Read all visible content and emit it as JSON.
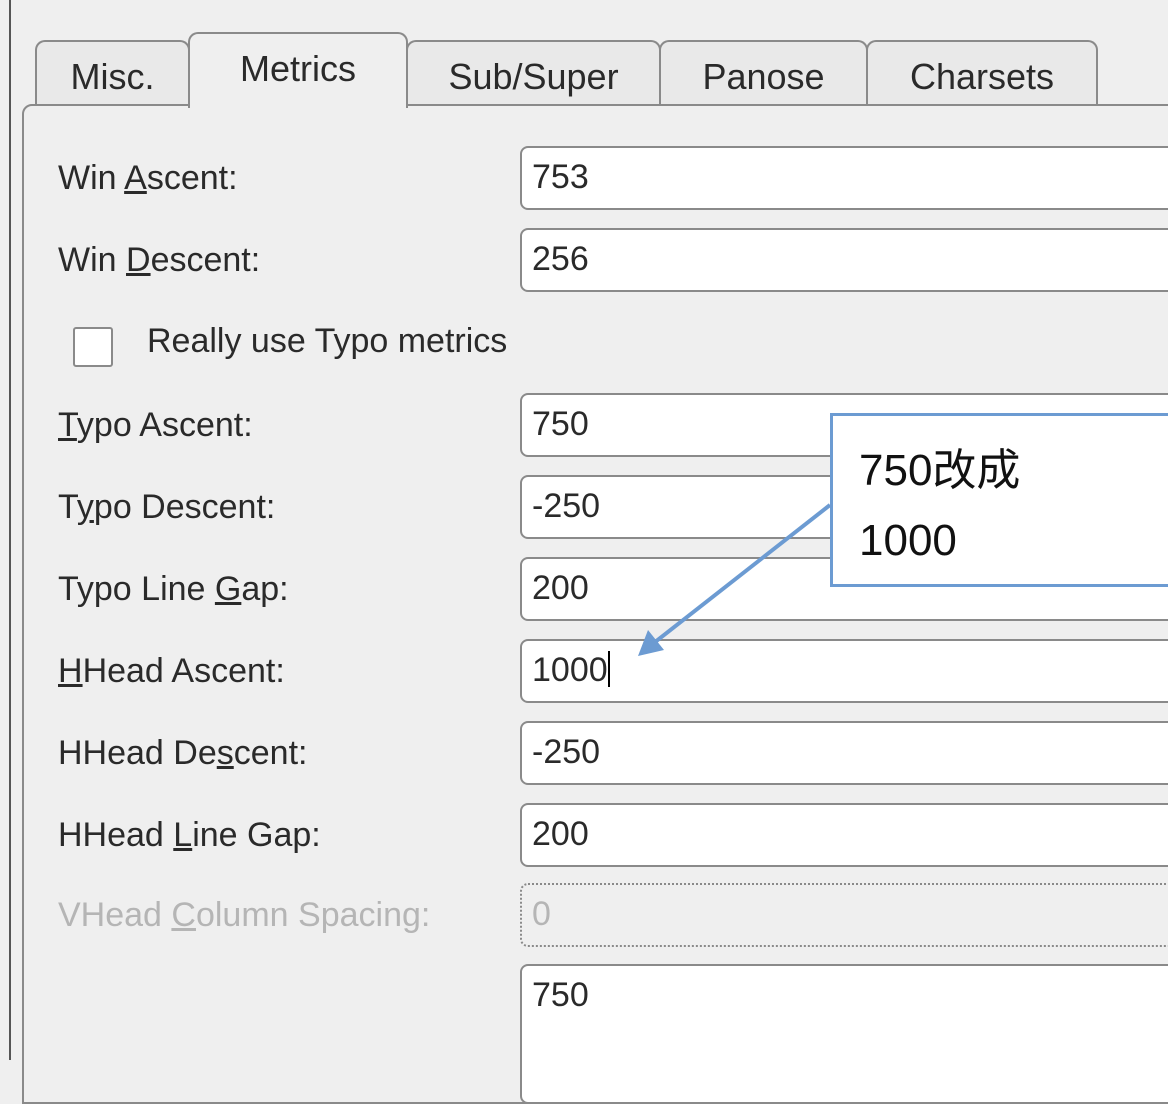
{
  "tabs": [
    {
      "label": "Misc.",
      "active": false
    },
    {
      "label": "Metrics",
      "active": true
    },
    {
      "label": "Sub/Super",
      "active": false
    },
    {
      "label": "Panose",
      "active": false
    },
    {
      "label": "Charsets",
      "active": false
    }
  ],
  "fields": [
    {
      "pre": "Win ",
      "key": "A",
      "post": "scent:",
      "value": "753"
    },
    {
      "pre": "Win ",
      "key": "D",
      "post": "escent:",
      "value": "256"
    },
    {
      "pre": "",
      "key": "T",
      "post": "ypo Ascent:",
      "value": "750"
    },
    {
      "pre": "T",
      "key": "y",
      "post": "po Descent:",
      "value": "-250"
    },
    {
      "pre": "Typo Line ",
      "key": "G",
      "post": "ap:",
      "value": "200"
    },
    {
      "pre": "",
      "key": "H",
      "post": "Head Ascent:",
      "value": "1000"
    },
    {
      "pre": "HHead De",
      "key": "s",
      "post": "cent:",
      "value": "-250"
    },
    {
      "pre": "HHead ",
      "key": "L",
      "post": "ine Gap:",
      "value": "200"
    },
    {
      "pre": "VHead ",
      "key": "C",
      "post": "olumn Spacing:",
      "value": "0",
      "disabled": true
    }
  ],
  "checkbox": {
    "label": "Really use Typo metrics",
    "checked": false
  },
  "extra_field": {
    "value": "750"
  },
  "annotation": {
    "line1": "750改成",
    "line2": "1000",
    "color": "#6c9bd2"
  }
}
